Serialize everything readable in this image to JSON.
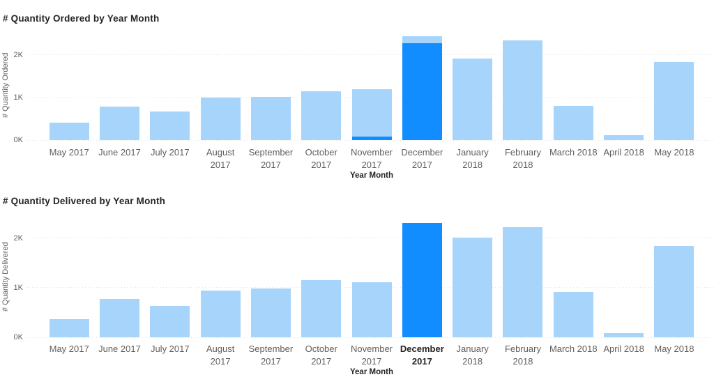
{
  "colors": {
    "background": "#FFFFFF",
    "bar_accent": "#118DFF",
    "bar_dimmed": "#A6D4FA",
    "title_text": "#252423",
    "axis_text": "#605E5C",
    "gridline": "#E2E2E2"
  },
  "chart_data": [
    {
      "type": "bar",
      "title": "# Quantity Ordered by Year Month",
      "xlabel": "Year Month",
      "ylabel": "# Quantity Ordered",
      "categories": [
        "May 2017",
        "June 2017",
        "July 2017",
        "August 2017",
        "September 2017",
        "October 2017",
        "November 2017",
        "December 2017",
        "January 2018",
        "February 2018",
        "March 2018",
        "April 2018",
        "May 2018"
      ],
      "category_label_lines": [
        [
          "May 2017"
        ],
        [
          "June 2017"
        ],
        [
          "July 2017"
        ],
        [
          "August",
          "2017"
        ],
        [
          "September",
          "2017"
        ],
        [
          "October",
          "2017"
        ],
        [
          "November",
          "2017"
        ],
        [
          "December",
          "2017"
        ],
        [
          "January",
          "2018"
        ],
        [
          "February",
          "2018"
        ],
        [
          "March 2018"
        ],
        [
          "April 2018"
        ],
        [
          "May 2018"
        ]
      ],
      "series": [
        {
          "name": "total",
          "role": "dimmed",
          "values": [
            410,
            790,
            670,
            1000,
            1020,
            1140,
            1200,
            2440,
            1920,
            2340,
            810,
            120,
            1840
          ]
        },
        {
          "name": "highlighted",
          "role": "accent",
          "values": [
            0,
            0,
            0,
            0,
            0,
            0,
            80,
            2270,
            0,
            0,
            0,
            0,
            0
          ]
        }
      ],
      "y_ticks": [
        "0K",
        "1K",
        "2K"
      ],
      "y_tick_values": [
        0,
        1000,
        2000
      ],
      "ylim": [
        0,
        2570
      ],
      "grid": "horizontal-dotted",
      "legend": "none",
      "selected_category": null
    },
    {
      "type": "bar",
      "title": "# Quantity Delivered by Year Month",
      "xlabel": "Year Month",
      "ylabel": "# Quantity Delivered",
      "categories": [
        "May 2017",
        "June 2017",
        "July 2017",
        "August 2017",
        "September 2017",
        "October 2017",
        "November 2017",
        "December 2017",
        "January 2018",
        "February 2018",
        "March 2018",
        "April 2018",
        "May 2018"
      ],
      "category_label_lines": [
        [
          "May 2017"
        ],
        [
          "June 2017"
        ],
        [
          "July 2017"
        ],
        [
          "August",
          "2017"
        ],
        [
          "September",
          "2017"
        ],
        [
          "October",
          "2017"
        ],
        [
          "November",
          "2017"
        ],
        [
          "December",
          "2017"
        ],
        [
          "January",
          "2018"
        ],
        [
          "February",
          "2018"
        ],
        [
          "March 2018"
        ],
        [
          "April 2018"
        ],
        [
          "May 2018"
        ]
      ],
      "series": [
        {
          "name": "total",
          "role": "dimmed",
          "values": [
            370,
            780,
            640,
            940,
            990,
            1160,
            1110,
            2310,
            2020,
            2230,
            920,
            90,
            1840
          ]
        }
      ],
      "y_ticks": [
        "0K",
        "1K",
        "2K"
      ],
      "y_tick_values": [
        0,
        1000,
        2000
      ],
      "ylim": [
        0,
        2450
      ],
      "grid": "horizontal-dotted",
      "legend": "none",
      "selected_category": "December 2017"
    }
  ]
}
